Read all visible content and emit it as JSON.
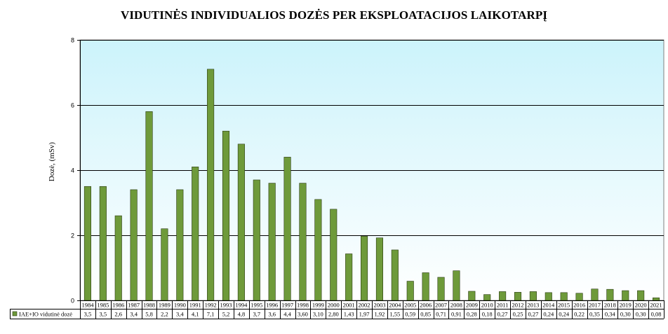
{
  "chart_data": {
    "type": "bar",
    "title": "VIDUTINĖS INDIVIDUALIOS DOZĖS PER EKSPLOATACIJOS LAIKOTARPĮ",
    "xlabel": "",
    "ylabel": "Dozė,  (mSv)",
    "ylim": [
      0,
      8
    ],
    "yticks": [
      "0",
      "2",
      "4",
      "6",
      "8"
    ],
    "grid": true,
    "categories": [
      "1984",
      "1985",
      "1986",
      "1987",
      "1988",
      "1989",
      "1990",
      "1991",
      "1992",
      "1993",
      "1994",
      "1995",
      "1996",
      "1997",
      "1998",
      "1999",
      "2000",
      "2001",
      "2002",
      "2003",
      "2004",
      "2005",
      "2006",
      "2007",
      "2008",
      "2009",
      "2010",
      "2011",
      "2012",
      "2013",
      "2014",
      "2015",
      "2016",
      "2017",
      "2018",
      "2019",
      "2020",
      "2021"
    ],
    "series": [
      {
        "name": "IAE+IO vidutinė dozė",
        "color": "#6e9a3a",
        "values": [
          3.5,
          3.5,
          2.6,
          3.4,
          5.8,
          2.2,
          3.4,
          4.1,
          7.1,
          5.2,
          4.8,
          3.7,
          3.6,
          4.4,
          3.6,
          3.1,
          2.8,
          1.43,
          1.97,
          1.92,
          1.55,
          0.59,
          0.85,
          0.71,
          0.91,
          0.28,
          0.18,
          0.27,
          0.25,
          0.27,
          0.24,
          0.24,
          0.22,
          0.35,
          0.34,
          0.3,
          0.3,
          0.08
        ],
        "labels": [
          "3,5",
          "3,5",
          "2,6",
          "3,4",
          "5,8",
          "2,2",
          "3,4",
          "4,1",
          "7,1",
          "5,2",
          "4,8",
          "3,7",
          "3,6",
          "4,4",
          "3,60",
          "3,10",
          "2,80",
          "1,43",
          "1,97",
          "1,92",
          "1,55",
          "0,59",
          "0,85",
          "0,71",
          "0,91",
          "0,28",
          "0,18",
          "0,27",
          "0,25",
          "0,27",
          "0,24",
          "0,24",
          "0,22",
          "0,35",
          "0,34",
          "0,30",
          "0,30",
          "0,08"
        ]
      }
    ]
  },
  "colors": {
    "plot_top": "#ccf3fb",
    "plot_bottom": "#ffffff",
    "bar": "#6e9a3a",
    "bar_edge": "#2a3a12"
  }
}
